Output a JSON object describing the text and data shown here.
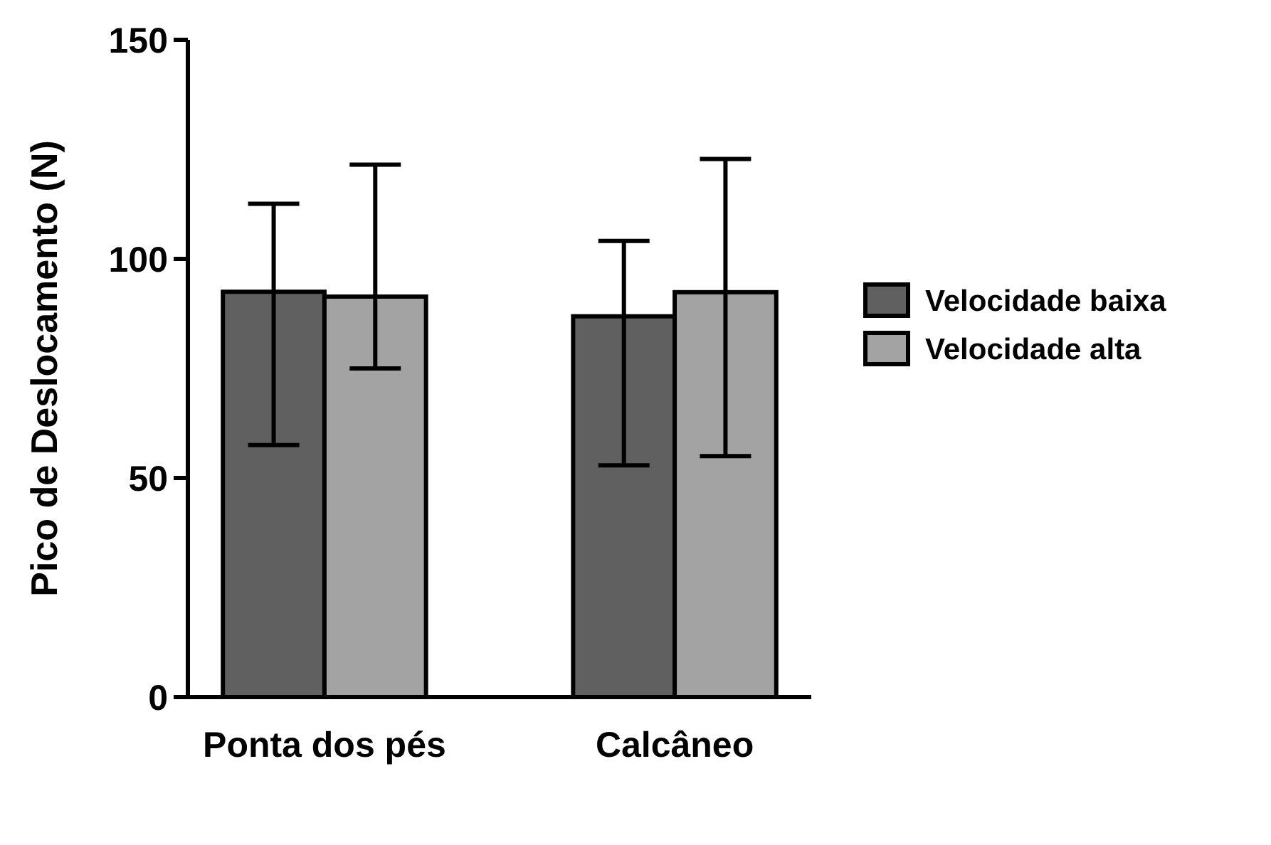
{
  "chart_data": {
    "type": "bar",
    "ylabel": "Pico de Deslocamento (N)",
    "categories": [
      "Ponta dos pés",
      "Calcâneo"
    ],
    "ylim": [
      0,
      150
    ],
    "yticks": [
      0,
      50,
      100,
      150
    ],
    "legend": "right",
    "grid": false,
    "series": [
      {
        "name": "Velocidade baixa",
        "color": "#606060",
        "values": [
          92.5,
          86.9
        ],
        "errors": [
          [
            57.5,
            112.6
          ],
          [
            52.9,
            104.1
          ]
        ]
      },
      {
        "name": "Velocidade alta",
        "color": "#a3a3a3",
        "values": [
          91.4,
          92.4
        ],
        "errors": [
          [
            75,
            121.5
          ],
          [
            55,
            122.8
          ]
        ]
      }
    ]
  }
}
